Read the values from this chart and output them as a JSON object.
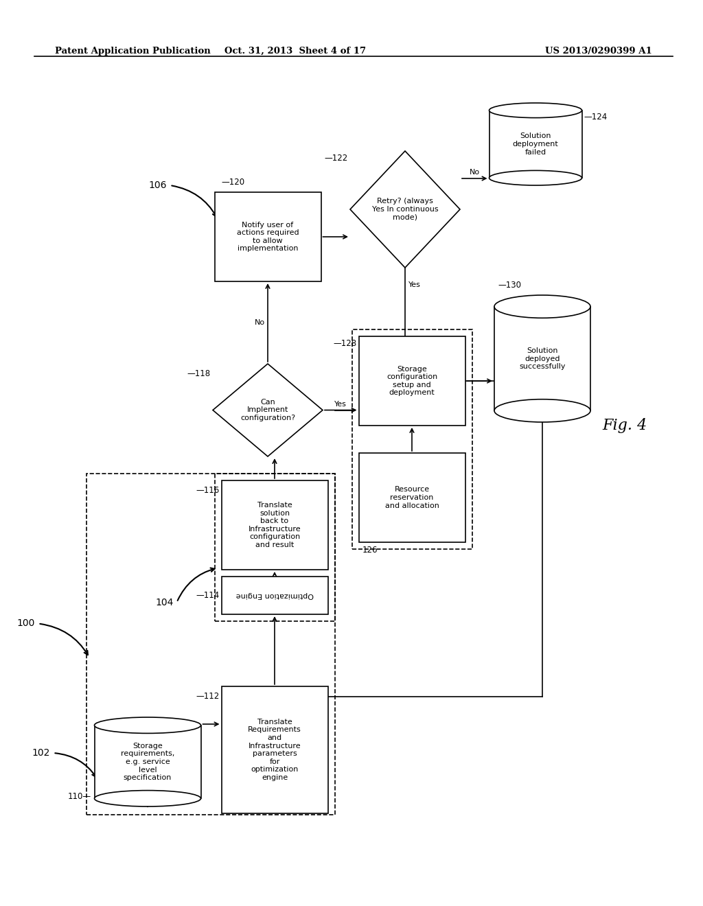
{
  "header_left": "Patent Application Publication",
  "header_center": "Oct. 31, 2013  Sheet 4 of 17",
  "header_right": "US 2013/0290399 A1",
  "fig_label": "Fig. 4",
  "background_color": "#ffffff"
}
